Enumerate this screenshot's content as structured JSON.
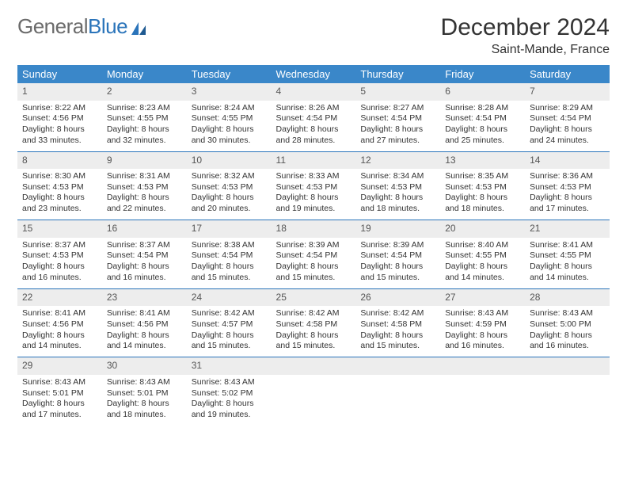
{
  "logo": {
    "word1": "General",
    "word2": "Blue"
  },
  "title": "December 2024",
  "location": "Saint-Mande, France",
  "dow": [
    "Sunday",
    "Monday",
    "Tuesday",
    "Wednesday",
    "Thursday",
    "Friday",
    "Saturday"
  ],
  "colors": {
    "header_bg": "#3a87c9",
    "row_border": "#2a74ba",
    "daynum_bg": "#ededed",
    "text": "#333333",
    "logo_gray": "#6b6b6b",
    "logo_blue": "#2a74ba"
  },
  "weeks": [
    [
      {
        "n": "1",
        "sr": "Sunrise: 8:22 AM",
        "ss": "Sunset: 4:56 PM",
        "dl": "Daylight: 8 hours and 33 minutes."
      },
      {
        "n": "2",
        "sr": "Sunrise: 8:23 AM",
        "ss": "Sunset: 4:55 PM",
        "dl": "Daylight: 8 hours and 32 minutes."
      },
      {
        "n": "3",
        "sr": "Sunrise: 8:24 AM",
        "ss": "Sunset: 4:55 PM",
        "dl": "Daylight: 8 hours and 30 minutes."
      },
      {
        "n": "4",
        "sr": "Sunrise: 8:26 AM",
        "ss": "Sunset: 4:54 PM",
        "dl": "Daylight: 8 hours and 28 minutes."
      },
      {
        "n": "5",
        "sr": "Sunrise: 8:27 AM",
        "ss": "Sunset: 4:54 PM",
        "dl": "Daylight: 8 hours and 27 minutes."
      },
      {
        "n": "6",
        "sr": "Sunrise: 8:28 AM",
        "ss": "Sunset: 4:54 PM",
        "dl": "Daylight: 8 hours and 25 minutes."
      },
      {
        "n": "7",
        "sr": "Sunrise: 8:29 AM",
        "ss": "Sunset: 4:54 PM",
        "dl": "Daylight: 8 hours and 24 minutes."
      }
    ],
    [
      {
        "n": "8",
        "sr": "Sunrise: 8:30 AM",
        "ss": "Sunset: 4:53 PM",
        "dl": "Daylight: 8 hours and 23 minutes."
      },
      {
        "n": "9",
        "sr": "Sunrise: 8:31 AM",
        "ss": "Sunset: 4:53 PM",
        "dl": "Daylight: 8 hours and 22 minutes."
      },
      {
        "n": "10",
        "sr": "Sunrise: 8:32 AM",
        "ss": "Sunset: 4:53 PM",
        "dl": "Daylight: 8 hours and 20 minutes."
      },
      {
        "n": "11",
        "sr": "Sunrise: 8:33 AM",
        "ss": "Sunset: 4:53 PM",
        "dl": "Daylight: 8 hours and 19 minutes."
      },
      {
        "n": "12",
        "sr": "Sunrise: 8:34 AM",
        "ss": "Sunset: 4:53 PM",
        "dl": "Daylight: 8 hours and 18 minutes."
      },
      {
        "n": "13",
        "sr": "Sunrise: 8:35 AM",
        "ss": "Sunset: 4:53 PM",
        "dl": "Daylight: 8 hours and 18 minutes."
      },
      {
        "n": "14",
        "sr": "Sunrise: 8:36 AM",
        "ss": "Sunset: 4:53 PM",
        "dl": "Daylight: 8 hours and 17 minutes."
      }
    ],
    [
      {
        "n": "15",
        "sr": "Sunrise: 8:37 AM",
        "ss": "Sunset: 4:53 PM",
        "dl": "Daylight: 8 hours and 16 minutes."
      },
      {
        "n": "16",
        "sr": "Sunrise: 8:37 AM",
        "ss": "Sunset: 4:54 PM",
        "dl": "Daylight: 8 hours and 16 minutes."
      },
      {
        "n": "17",
        "sr": "Sunrise: 8:38 AM",
        "ss": "Sunset: 4:54 PM",
        "dl": "Daylight: 8 hours and 15 minutes."
      },
      {
        "n": "18",
        "sr": "Sunrise: 8:39 AM",
        "ss": "Sunset: 4:54 PM",
        "dl": "Daylight: 8 hours and 15 minutes."
      },
      {
        "n": "19",
        "sr": "Sunrise: 8:39 AM",
        "ss": "Sunset: 4:54 PM",
        "dl": "Daylight: 8 hours and 15 minutes."
      },
      {
        "n": "20",
        "sr": "Sunrise: 8:40 AM",
        "ss": "Sunset: 4:55 PM",
        "dl": "Daylight: 8 hours and 14 minutes."
      },
      {
        "n": "21",
        "sr": "Sunrise: 8:41 AM",
        "ss": "Sunset: 4:55 PM",
        "dl": "Daylight: 8 hours and 14 minutes."
      }
    ],
    [
      {
        "n": "22",
        "sr": "Sunrise: 8:41 AM",
        "ss": "Sunset: 4:56 PM",
        "dl": "Daylight: 8 hours and 14 minutes."
      },
      {
        "n": "23",
        "sr": "Sunrise: 8:41 AM",
        "ss": "Sunset: 4:56 PM",
        "dl": "Daylight: 8 hours and 14 minutes."
      },
      {
        "n": "24",
        "sr": "Sunrise: 8:42 AM",
        "ss": "Sunset: 4:57 PM",
        "dl": "Daylight: 8 hours and 15 minutes."
      },
      {
        "n": "25",
        "sr": "Sunrise: 8:42 AM",
        "ss": "Sunset: 4:58 PM",
        "dl": "Daylight: 8 hours and 15 minutes."
      },
      {
        "n": "26",
        "sr": "Sunrise: 8:42 AM",
        "ss": "Sunset: 4:58 PM",
        "dl": "Daylight: 8 hours and 15 minutes."
      },
      {
        "n": "27",
        "sr": "Sunrise: 8:43 AM",
        "ss": "Sunset: 4:59 PM",
        "dl": "Daylight: 8 hours and 16 minutes."
      },
      {
        "n": "28",
        "sr": "Sunrise: 8:43 AM",
        "ss": "Sunset: 5:00 PM",
        "dl": "Daylight: 8 hours and 16 minutes."
      }
    ],
    [
      {
        "n": "29",
        "sr": "Sunrise: 8:43 AM",
        "ss": "Sunset: 5:01 PM",
        "dl": "Daylight: 8 hours and 17 minutes."
      },
      {
        "n": "30",
        "sr": "Sunrise: 8:43 AM",
        "ss": "Sunset: 5:01 PM",
        "dl": "Daylight: 8 hours and 18 minutes."
      },
      {
        "n": "31",
        "sr": "Sunrise: 8:43 AM",
        "ss": "Sunset: 5:02 PM",
        "dl": "Daylight: 8 hours and 19 minutes."
      },
      {
        "empty": true
      },
      {
        "empty": true
      },
      {
        "empty": true
      },
      {
        "empty": true
      }
    ]
  ]
}
